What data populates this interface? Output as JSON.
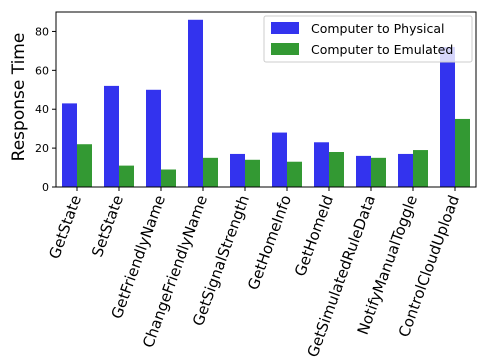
{
  "chart_data": {
    "type": "bar",
    "categories": [
      "GetState",
      "SetState",
      "GetFriendlyName",
      "ChangeFriendlyName",
      "GetSignalStrength",
      "GetHomeInfo",
      "GetHomeId",
      "GetSimulatedRuleData",
      "NotifyManualToggle",
      "ControlCloudUpload"
    ],
    "series": [
      {
        "name": "Computer to Physical",
        "color": "#3333ee",
        "values": [
          43,
          52,
          50,
          86,
          17,
          28,
          23,
          16,
          17,
          72
        ]
      },
      {
        "name": "Computer to Emulated",
        "color": "#339933",
        "values": [
          22,
          11,
          9,
          15,
          14,
          13,
          18,
          15,
          19,
          35
        ]
      }
    ],
    "title": "",
    "xlabel": "",
    "ylabel": "Response Time",
    "ylim": [
      0,
      90
    ],
    "yticks": [
      0,
      20,
      40,
      60,
      80
    ],
    "grid": false,
    "legend_position": "top-right"
  }
}
